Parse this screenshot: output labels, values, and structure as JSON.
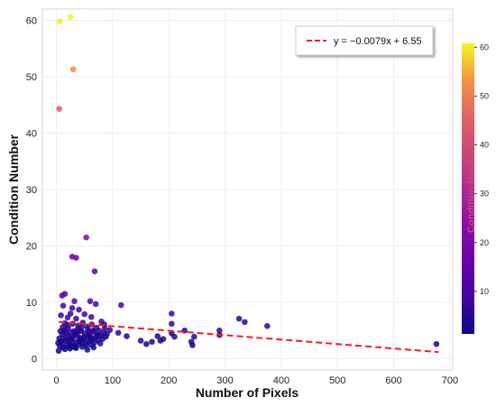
{
  "chart_data": {
    "type": "scatter",
    "title": "",
    "xlabel": "Number of Pixels",
    "ylabel": "Condition Number",
    "xlim": [
      -25,
      705
    ],
    "ylim": [
      -2,
      62
    ],
    "xticks": [
      0,
      100,
      200,
      300,
      400,
      500,
      600,
      700
    ],
    "yticks": [
      0,
      10,
      20,
      30,
      40,
      50,
      60
    ],
    "grid": true,
    "colormap": "plasma",
    "colorbar": {
      "label": "Condition Number",
      "range": [
        1.3,
        60.8
      ],
      "ticks": [
        10,
        20,
        30,
        40,
        50,
        60
      ]
    },
    "legend": {
      "placement": "top-right",
      "entries": [
        "y = −0.0079x + 6.55"
      ]
    },
    "trendline": {
      "slope": -0.0079,
      "intercept": 6.55,
      "x_range": [
        4,
        680
      ],
      "color": "#ff1a1a"
    },
    "points": [
      [
        6,
        59.8
      ],
      [
        25,
        60.6
      ],
      [
        30,
        51.3
      ],
      [
        5,
        44.3
      ],
      [
        53,
        21.5
      ],
      [
        28,
        18.1
      ],
      [
        35,
        17.9
      ],
      [
        68,
        15.5
      ],
      [
        10,
        11.2
      ],
      [
        15,
        11.5
      ],
      [
        115,
        9.5
      ],
      [
        70,
        9.7
      ],
      [
        32,
        10.2
      ],
      [
        60,
        10.2
      ],
      [
        8,
        7.7
      ],
      [
        20,
        7.3
      ],
      [
        25,
        8.0
      ],
      [
        35,
        7.1
      ],
      [
        50,
        7.9
      ],
      [
        62,
        7.4
      ],
      [
        80,
        6.6
      ],
      [
        12,
        9.4
      ],
      [
        28,
        9.0
      ],
      [
        40,
        8.7
      ],
      [
        15,
        6.3
      ],
      [
        205,
        8.0
      ],
      [
        205,
        6.2
      ],
      [
        325,
        7.1
      ],
      [
        335,
        6.5
      ],
      [
        375,
        5.8
      ],
      [
        85,
        6.1
      ],
      [
        95,
        5.1
      ],
      [
        110,
        4.6
      ],
      [
        150,
        3.2
      ],
      [
        160,
        2.6
      ],
      [
        170,
        3.0
      ],
      [
        180,
        4.0
      ],
      [
        190,
        3.5
      ],
      [
        205,
        4.5
      ],
      [
        210,
        3.9
      ],
      [
        240,
        3.0
      ],
      [
        242,
        2.4
      ],
      [
        245,
        3.9
      ],
      [
        290,
        5.0
      ],
      [
        290,
        4.2
      ],
      [
        676,
        2.6
      ],
      [
        125,
        4.0
      ],
      [
        185,
        3.2
      ],
      [
        228,
        5.0
      ],
      [
        4,
        1.4
      ],
      [
        6,
        2.2
      ],
      [
        8,
        3.1
      ],
      [
        10,
        4.3
      ],
      [
        12,
        2.0
      ],
      [
        14,
        3.6
      ],
      [
        16,
        5.1
      ],
      [
        18,
        2.5
      ],
      [
        20,
        4.0
      ],
      [
        22,
        3.2
      ],
      [
        24,
        1.8
      ],
      [
        26,
        4.7
      ],
      [
        28,
        2.9
      ],
      [
        30,
        3.9
      ],
      [
        32,
        2.3
      ],
      [
        34,
        4.4
      ],
      [
        36,
        3.0
      ],
      [
        38,
        5.3
      ],
      [
        40,
        2.6
      ],
      [
        42,
        3.7
      ],
      [
        44,
        4.9
      ],
      [
        46,
        2.1
      ],
      [
        48,
        3.4
      ],
      [
        50,
        4.5
      ],
      [
        52,
        2.8
      ],
      [
        54,
        3.9
      ],
      [
        56,
        5.2
      ],
      [
        58,
        3.1
      ],
      [
        60,
        4.0
      ],
      [
        62,
        2.5
      ],
      [
        64,
        3.6
      ],
      [
        66,
        4.8
      ],
      [
        68,
        2.9
      ],
      [
        70,
        3.8
      ],
      [
        72,
        4.3
      ],
      [
        74,
        3.3
      ],
      [
        76,
        5.0
      ],
      [
        78,
        2.7
      ],
      [
        80,
        4.1
      ],
      [
        82,
        3.5
      ],
      [
        84,
        4.6
      ],
      [
        86,
        5.4
      ],
      [
        88,
        3.9
      ],
      [
        90,
        4.4
      ],
      [
        5,
        3.6
      ],
      [
        9,
        2.7
      ],
      [
        13,
        4.8
      ],
      [
        17,
        3.3
      ],
      [
        21,
        5.5
      ],
      [
        23,
        2.4
      ],
      [
        27,
        3.5
      ],
      [
        31,
        4.9
      ],
      [
        33,
        2.0
      ],
      [
        37,
        4.1
      ],
      [
        41,
        3.2
      ],
      [
        45,
        5.6
      ],
      [
        49,
        3.8
      ],
      [
        53,
        2.3
      ],
      [
        57,
        4.2
      ],
      [
        61,
        3.4
      ],
      [
        65,
        5.0
      ],
      [
        7,
        4.9
      ],
      [
        11,
        5.6
      ],
      [
        19,
        6.0
      ],
      [
        29,
        6.2
      ],
      [
        39,
        5.9
      ],
      [
        47,
        6.4
      ],
      [
        55,
        5.7
      ],
      [
        63,
        6.1
      ],
      [
        71,
        5.5
      ],
      [
        3,
        2.8
      ],
      [
        15,
        1.7
      ],
      [
        25,
        2.2
      ],
      [
        35,
        1.9
      ],
      [
        45,
        2.7
      ],
      [
        55,
        1.6
      ],
      [
        66,
        2.0
      ],
      [
        42,
        5.0
      ],
      [
        18,
        4.6
      ],
      [
        26,
        3.8
      ],
      [
        36,
        4.6
      ],
      [
        44,
        3.5
      ],
      [
        58,
        4.7
      ],
      [
        74,
        4.1
      ]
    ]
  }
}
